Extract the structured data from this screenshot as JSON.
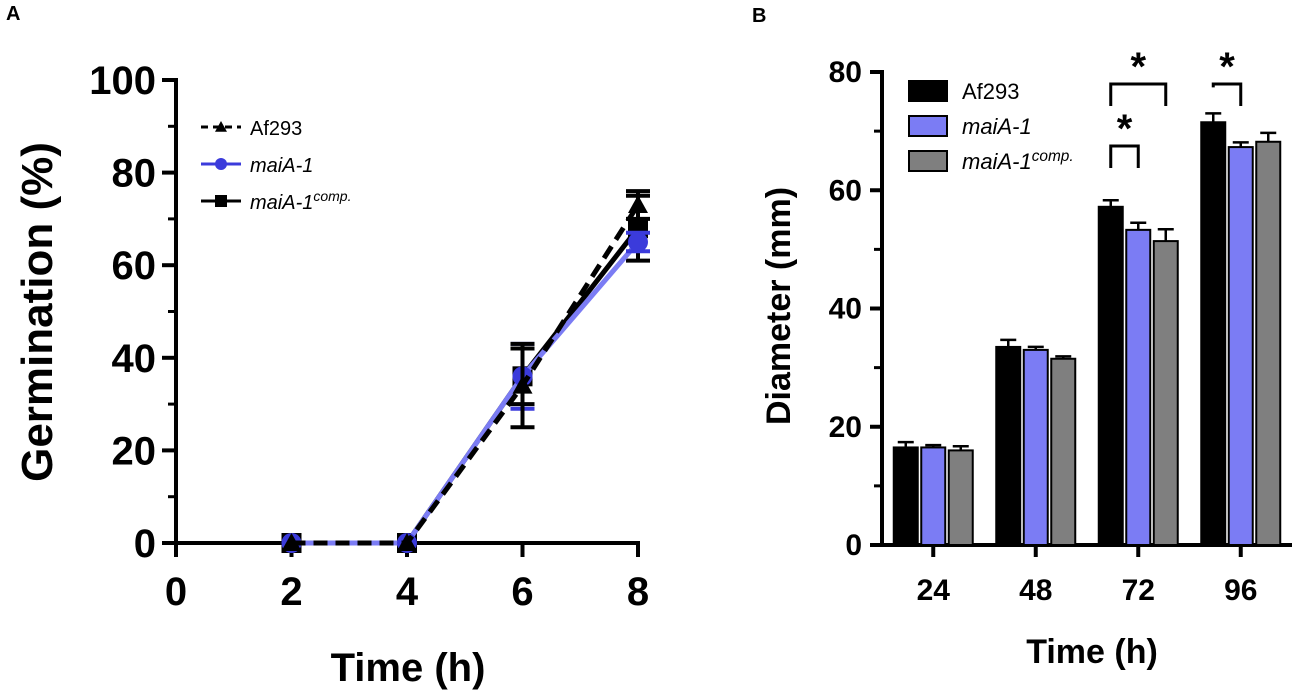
{
  "colors": {
    "af293": "#000000",
    "maia1": "#7b7cf4",
    "maia1_line": "#3b3bdb",
    "comp": "#7f7f7f",
    "axis": "#000000"
  },
  "chart_data": [
    {
      "panel_label": "A",
      "type": "line",
      "xlabel": "Time (h)",
      "ylabel": "Germination (%)",
      "xlim": [
        0,
        8
      ],
      "ylim": [
        0,
        100
      ],
      "x_ticks": [
        "0",
        "2",
        "4",
        "6",
        "8"
      ],
      "y_ticks": [
        "0",
        "20",
        "40",
        "60",
        "80",
        "100"
      ],
      "x": [
        2,
        4,
        6,
        8
      ],
      "series": [
        {
          "name": "Af293",
          "italic": false,
          "values": [
            0,
            0,
            34,
            73
          ],
          "errors": [
            0,
            0,
            9,
            3
          ],
          "marker": "triangle",
          "dashed": true
        },
        {
          "name": "maiA-1",
          "italic": true,
          "values": [
            0,
            0,
            36,
            65
          ],
          "errors": [
            0,
            0,
            7,
            2
          ],
          "marker": "circle",
          "dashed": false
        },
        {
          "name": "maiA-1",
          "sup": "comp.",
          "italic": true,
          "values": [
            0,
            0,
            36,
            68
          ],
          "errors": [
            0,
            0,
            6,
            7
          ],
          "marker": "square",
          "dashed": false
        }
      ],
      "legend": "top-left"
    },
    {
      "panel_label": "B",
      "type": "bar",
      "xlabel": "Time (h)",
      "ylabel": "Diameter (mm)",
      "ylim": [
        0,
        80
      ],
      "y_ticks": [
        "0",
        "20",
        "40",
        "60",
        "80"
      ],
      "categories": [
        "24",
        "48",
        "72",
        "96"
      ],
      "series": [
        {
          "name": "Af293",
          "italic": false,
          "values": [
            16.5,
            33.5,
            57.2,
            71.5
          ],
          "errors": [
            0.9,
            1.2,
            1.1,
            1.5
          ]
        },
        {
          "name": "maiA-1",
          "italic": true,
          "values": [
            16.5,
            33.0,
            53.3,
            67.3
          ],
          "errors": [
            0.4,
            0.5,
            1.2,
            0.8
          ]
        },
        {
          "name": "maiA-1",
          "sup": "comp.",
          "italic": true,
          "values": [
            16.0,
            31.5,
            51.4,
            68.2
          ],
          "errors": [
            0.7,
            0.4,
            2.0,
            1.5
          ]
        }
      ],
      "significance": [
        {
          "category": "72",
          "from_series": 0,
          "to_series": 2,
          "label": "*"
        },
        {
          "category": "72",
          "from_series": 0,
          "to_series": 1,
          "label": "*"
        },
        {
          "category": "96",
          "from_series": 0,
          "to_series": 1,
          "label": "*"
        }
      ],
      "legend": "top-left"
    }
  ]
}
